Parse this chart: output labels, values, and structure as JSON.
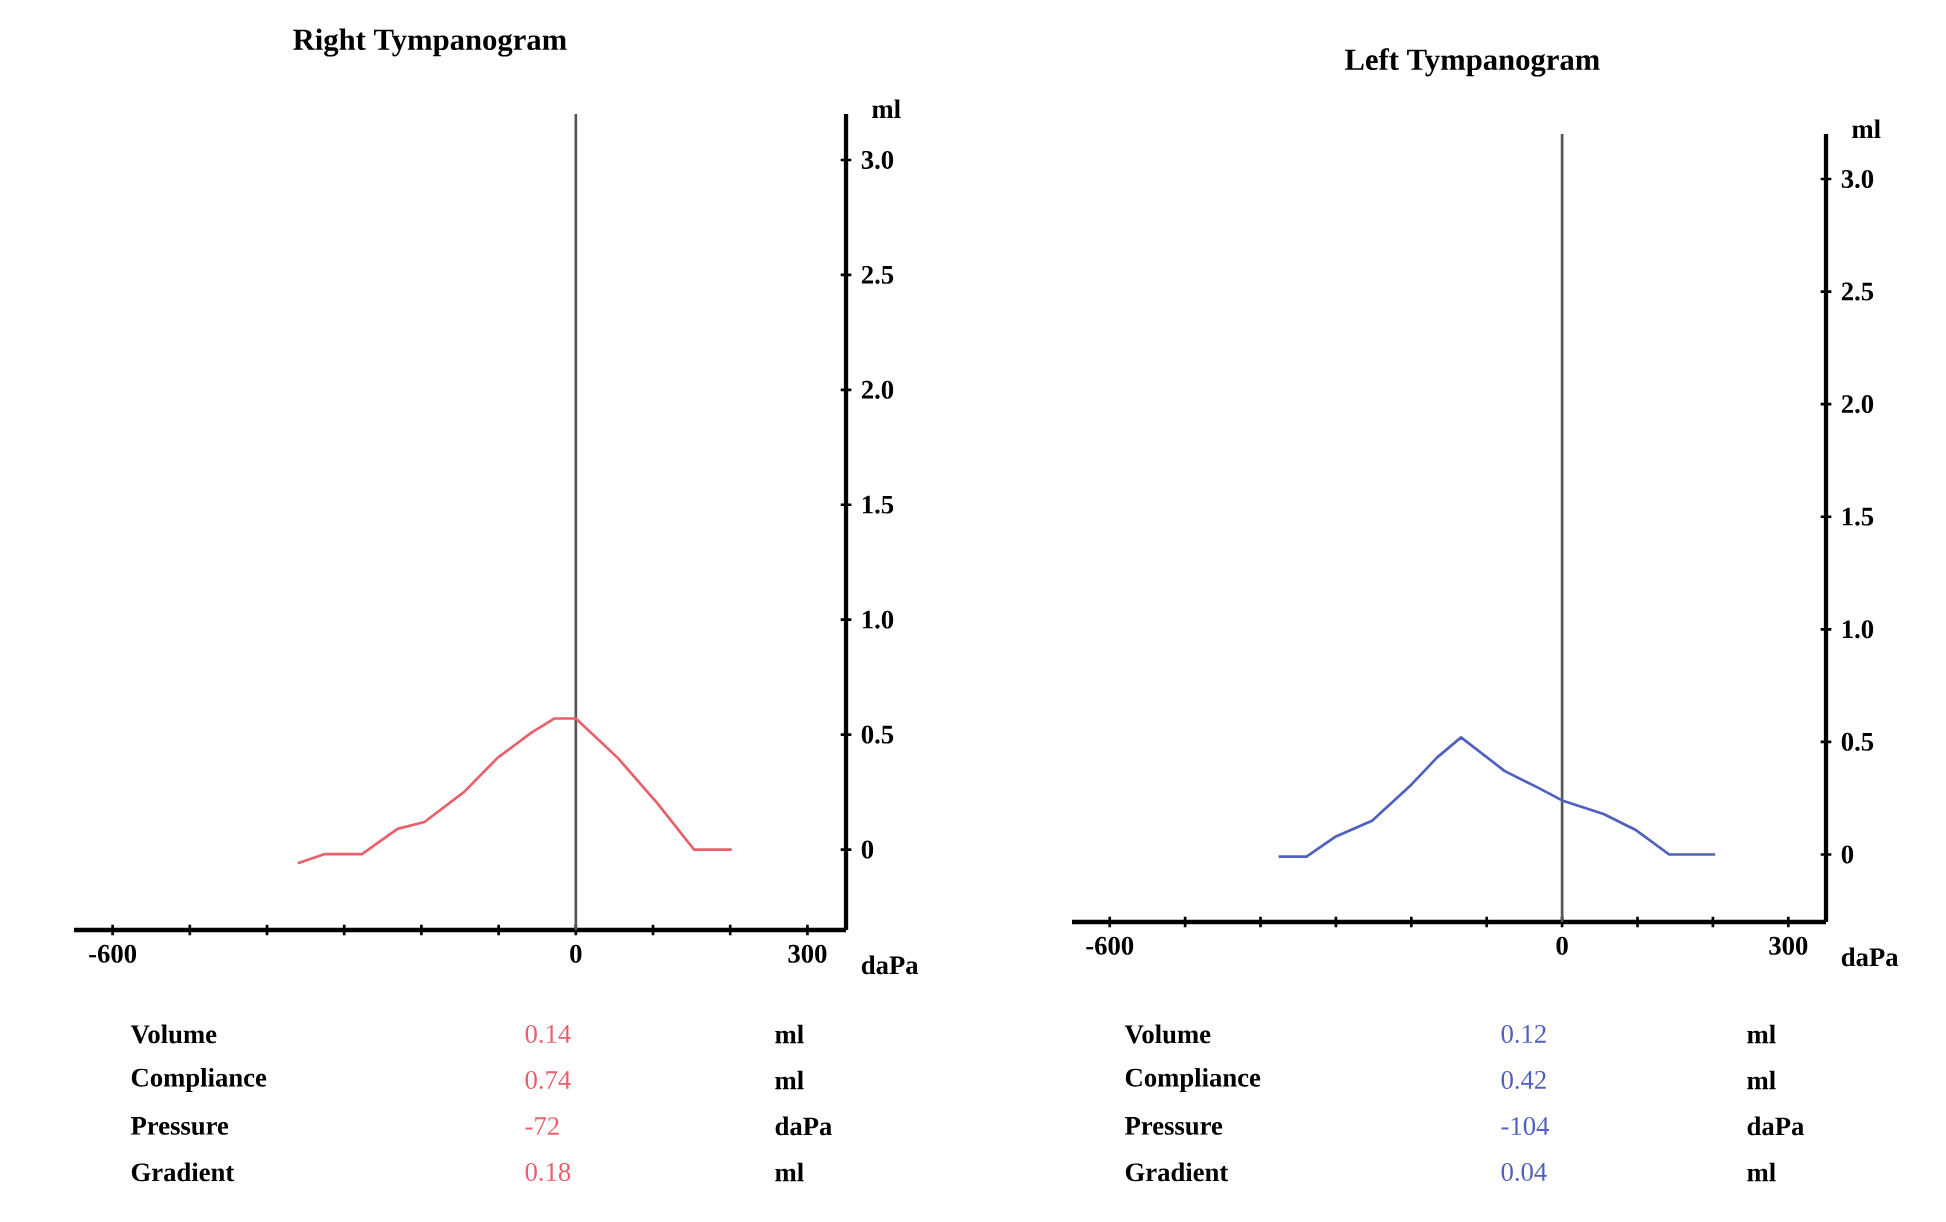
{
  "chart_data": [
    {
      "type": "line",
      "title": "Right Tympanogram",
      "xlabel": "daPa",
      "ylabel": "ml",
      "xlim": [
        -650,
        350
      ],
      "ylim": [
        -0.35,
        3.2
      ],
      "xticks": [
        -600,
        {
          "value": -500,
          "label": null
        },
        {
          "value": -400,
          "label": null
        },
        {
          "value": -300,
          "label": null
        },
        {
          "value": -200,
          "label": null
        },
        {
          "value": -100,
          "label": null
        },
        0,
        {
          "value": 100,
          "label": null
        },
        {
          "value": 200,
          "label": null
        },
        300
      ],
      "yticks": [
        0,
        0.5,
        {
          "value": 1,
          "label": "1.0"
        },
        1.5,
        {
          "value": 2,
          "label": "2.0"
        },
        2.5,
        {
          "value": 3,
          "label": "3.0"
        }
      ],
      "series": [
        {
          "color": "#e8606a",
          "x": [
            -360,
            -326,
            -277,
            -231,
            -196,
            -145,
            -101,
            -57,
            -28,
            0,
            54,
            106,
            153,
            202
          ],
          "values": [
            -0.06,
            -0.02,
            -0.02,
            0.09,
            0.12,
            0.25,
            0.4,
            0.51,
            0.57,
            0.57,
            0.4,
            0.2,
            0.0,
            0.0
          ]
        }
      ],
      "ref_lines": [
        {
          "axis": "x",
          "value": 0,
          "color": "#555555"
        }
      ],
      "annotations": [
        "Volume",
        "0.14",
        "ml",
        "Compliance",
        "0.74",
        "ml",
        "Pressure",
        "-72",
        "daPa",
        "Gradient",
        "0.18",
        "ml"
      ]
    },
    {
      "type": "line",
      "title": "Left Tympanogram",
      "xlabel": "daPa",
      "ylabel": "ml",
      "xlim": [
        -650,
        350
      ],
      "ylim": [
        -0.3,
        3.2
      ],
      "xticks": [
        -600,
        {
          "value": -500,
          "label": null
        },
        {
          "value": -400,
          "label": null
        },
        {
          "value": -300,
          "label": null
        },
        {
          "value": -200,
          "label": null
        },
        {
          "value": -100,
          "label": null
        },
        0,
        {
          "value": 100,
          "label": null
        },
        {
          "value": 200,
          "label": null
        },
        300
      ],
      "yticks": [
        0,
        0.5,
        {
          "value": 1,
          "label": "1.0"
        },
        1.5,
        {
          "value": 2,
          "label": "2.0"
        },
        2.5,
        {
          "value": 3,
          "label": "3.0"
        }
      ],
      "series": [
        {
          "color": "#5060c0",
          "x": [
            -376,
            -339,
            -300,
            -252,
            -200,
            -166,
            -134,
            -76,
            -34,
            0,
            55,
            97,
            142,
            203
          ],
          "values": [
            -0.01,
            -0.01,
            0.08,
            0.15,
            0.31,
            0.43,
            0.52,
            0.37,
            0.3,
            0.24,
            0.18,
            0.11,
            0.0,
            0.0
          ]
        }
      ],
      "ref_lines": [
        {
          "axis": "x",
          "value": 0,
          "color": "#555555"
        }
      ],
      "annotations": [
        "Volume",
        "0.12",
        "ml",
        "Compliance",
        "0.42",
        "ml",
        "Pressure",
        "-104",
        "daPa",
        "Gradient",
        "0.04",
        "ml"
      ]
    }
  ]
}
